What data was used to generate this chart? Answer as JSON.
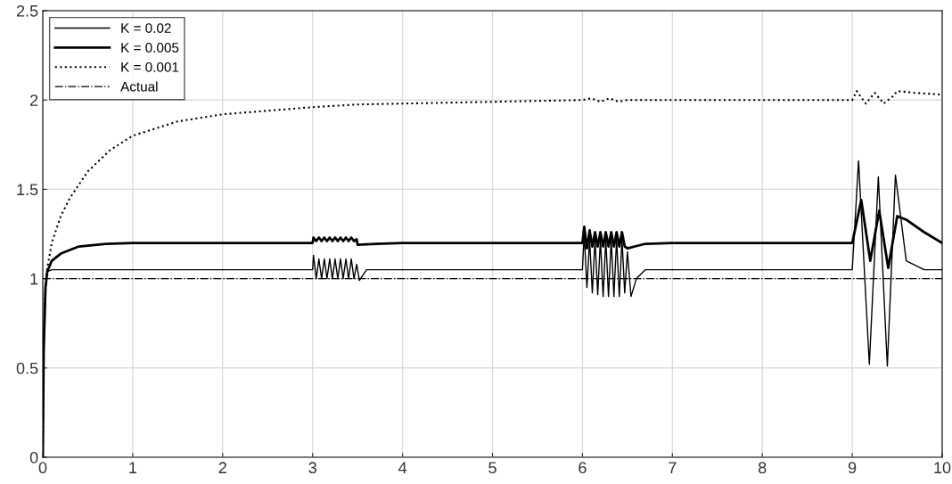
{
  "chart_data": {
    "type": "line",
    "xlim": [
      0,
      10
    ],
    "ylim": [
      0,
      2.5
    ],
    "xticks": [
      0,
      1,
      2,
      3,
      4,
      5,
      6,
      7,
      8,
      9,
      10
    ],
    "yticks": [
      0,
      0.5,
      1,
      1.5,
      2,
      2.5
    ],
    "grid": true,
    "legend": "top left",
    "marker": "none",
    "series": [
      {
        "name": "K = 0.02",
        "color": "#000000",
        "line_style": "solid",
        "x": [
          0,
          0.01,
          0.03,
          0.05,
          0.1,
          1,
          2,
          3.0,
          3.01,
          3.04,
          3.07,
          3.1,
          3.13,
          3.16,
          3.19,
          3.22,
          3.25,
          3.28,
          3.31,
          3.34,
          3.37,
          3.4,
          3.43,
          3.46,
          3.49,
          3.52,
          3.6,
          4,
          5,
          6.0,
          6.02,
          6.05,
          6.08,
          6.11,
          6.14,
          6.17,
          6.2,
          6.23,
          6.26,
          6.29,
          6.32,
          6.35,
          6.38,
          6.41,
          6.44,
          6.47,
          6.5,
          6.54,
          6.6,
          6.7,
          7,
          8,
          9.0,
          9.07,
          9.19,
          9.29,
          9.39,
          9.48,
          9.6,
          9.8,
          10
        ],
        "values": [
          0,
          0.6,
          0.95,
          1.04,
          1.05,
          1.05,
          1.05,
          1.05,
          1.13,
          1.0,
          1.11,
          1.0,
          1.11,
          1.0,
          1.11,
          1.0,
          1.11,
          1.0,
          1.11,
          1.0,
          1.11,
          1.0,
          1.11,
          1.0,
          1.08,
          0.99,
          1.05,
          1.05,
          1.05,
          1.05,
          1.25,
          0.95,
          1.22,
          0.92,
          1.22,
          0.91,
          1.22,
          0.9,
          1.22,
          0.9,
          1.22,
          0.9,
          1.22,
          0.9,
          1.22,
          0.92,
          1.15,
          0.9,
          1.0,
          1.05,
          1.05,
          1.05,
          1.05,
          1.66,
          0.52,
          1.57,
          0.51,
          1.58,
          1.1,
          1.05,
          1.05
        ]
      },
      {
        "name": "K = 0.005",
        "color": "#000000",
        "line_style": "solid",
        "x": [
          0,
          0.01,
          0.03,
          0.05,
          0.1,
          0.2,
          0.4,
          0.7,
          1,
          2,
          3.0,
          3.01,
          3.04,
          3.07,
          3.1,
          3.13,
          3.16,
          3.19,
          3.22,
          3.25,
          3.28,
          3.31,
          3.34,
          3.37,
          3.4,
          3.43,
          3.46,
          3.49,
          3.5,
          3.7,
          4,
          5,
          6.0,
          6.02,
          6.05,
          6.08,
          6.11,
          6.14,
          6.17,
          6.2,
          6.23,
          6.26,
          6.29,
          6.32,
          6.35,
          6.38,
          6.41,
          6.44,
          6.47,
          6.5,
          6.7,
          7,
          8,
          9.0,
          9.1,
          9.2,
          9.3,
          9.4,
          9.5,
          9.6,
          9.8,
          10
        ],
        "values": [
          0,
          0.6,
          0.95,
          1.04,
          1.1,
          1.14,
          1.18,
          1.195,
          1.2,
          1.2,
          1.2,
          1.23,
          1.21,
          1.23,
          1.21,
          1.23,
          1.21,
          1.23,
          1.21,
          1.23,
          1.21,
          1.23,
          1.21,
          1.23,
          1.21,
          1.23,
          1.21,
          1.22,
          1.19,
          1.195,
          1.2,
          1.2,
          1.2,
          1.29,
          1.17,
          1.27,
          1.18,
          1.26,
          1.18,
          1.26,
          1.18,
          1.26,
          1.18,
          1.26,
          1.18,
          1.26,
          1.18,
          1.26,
          1.18,
          1.17,
          1.195,
          1.2,
          1.2,
          1.2,
          1.44,
          1.1,
          1.38,
          1.06,
          1.35,
          1.33,
          1.26,
          1.2
        ]
      },
      {
        "name": "K = 0.001",
        "color": "#000000",
        "line_style": "dotted",
        "x": [
          0,
          0.01,
          0.03,
          0.05,
          0.1,
          0.2,
          0.3,
          0.5,
          0.75,
          1,
          1.5,
          2,
          3,
          3.5,
          4,
          5,
          6.0,
          6.1,
          6.2,
          6.3,
          6.4,
          6.5,
          8,
          9.0,
          9.05,
          9.15,
          9.25,
          9.35,
          9.45,
          9.5,
          9.7,
          10
        ],
        "values": [
          0,
          0.6,
          0.95,
          1.06,
          1.2,
          1.35,
          1.45,
          1.6,
          1.72,
          1.8,
          1.88,
          1.92,
          1.96,
          1.975,
          1.98,
          1.99,
          2.0,
          2.01,
          1.99,
          2.01,
          1.99,
          2.0,
          2.0,
          2.0,
          2.05,
          1.98,
          2.04,
          1.98,
          2.02,
          2.05,
          2.04,
          2.03
        ]
      },
      {
        "name": "Actual",
        "color": "#000000",
        "line_style": "dashdot",
        "x": [
          0,
          10
        ],
        "values": [
          1,
          1
        ]
      }
    ]
  }
}
